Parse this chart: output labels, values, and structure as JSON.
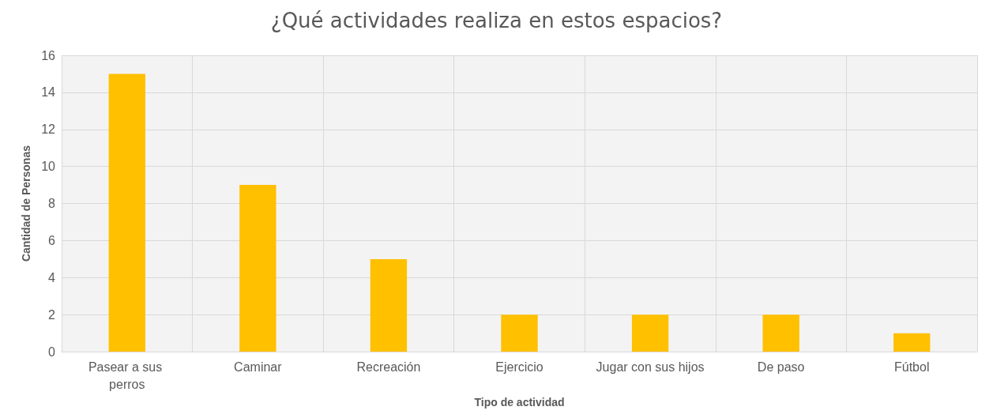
{
  "chart_data": {
    "type": "bar",
    "title": "¿Qué actividades realiza en estos espacios?",
    "xlabel": "Tipo de actividad",
    "ylabel": "Cantidad de Personas",
    "categories": [
      "Pasear a sus perros",
      "Caminar",
      "Recreación",
      "Ejercicio",
      "Jugar con sus hijos",
      "De paso",
      "Fútbol"
    ],
    "values": [
      15,
      9,
      5,
      2,
      2,
      2,
      1
    ],
    "color": "#ffc000",
    "ylim": [
      0,
      16
    ],
    "yticks": [
      0,
      2,
      4,
      6,
      8,
      10,
      12,
      14,
      16
    ],
    "grid": true
  }
}
